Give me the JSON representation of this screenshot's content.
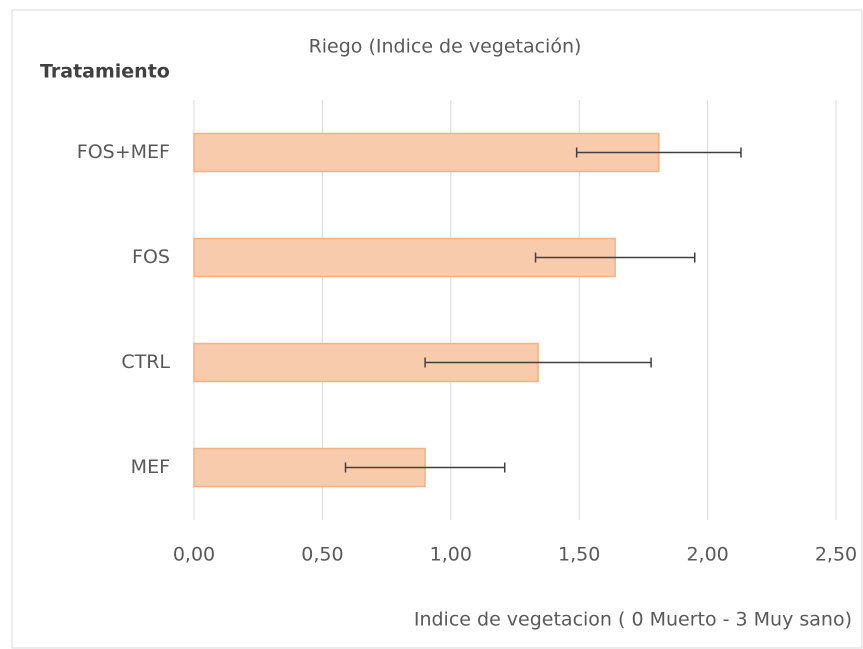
{
  "chart_data": {
    "type": "bar",
    "orientation": "horizontal",
    "title": "Riego (Indice de vegetación)",
    "y_label": "Tratamiento",
    "x_label": "Indice de vegetacion ( 0 Muerto - 3 Muy sano)",
    "categories": [
      "FOS+MEF",
      "FOS",
      "CTRL",
      "MEF"
    ],
    "values": [
      1.81,
      1.64,
      1.34,
      0.9
    ],
    "errors": [
      0.32,
      0.31,
      0.44,
      0.31
    ],
    "color": "#f8cbad",
    "edge_color": "#f4b183",
    "xlim": [
      0,
      2.5
    ],
    "xticks": [
      {
        "value": 0,
        "label": "0,00"
      },
      {
        "value": 0.5,
        "label": "0,50"
      },
      {
        "value": 1,
        "label": "1,00"
      },
      {
        "value": 1.5,
        "label": "1,50"
      },
      {
        "value": 2,
        "label": "2,00"
      },
      {
        "value": 2.5,
        "label": "2,50"
      }
    ],
    "grid": true
  }
}
